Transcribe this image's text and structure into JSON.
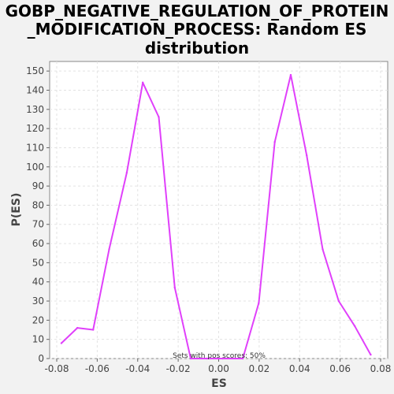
{
  "chart_data": {
    "type": "line",
    "title_lines": [
      "GOBP_NEGATIVE_REGULATION_OF_PROTEIN",
      "_MODIFICATION_PROCESS: Random ES",
      "distribution"
    ],
    "xlabel": "ES",
    "ylabel": "P(ES)",
    "annotation": "Sets with pos scores: 50%",
    "xlim": [
      -0.0835,
      0.0835
    ],
    "ylim": [
      0,
      155
    ],
    "xticks": [
      -0.08,
      -0.06,
      -0.04,
      -0.02,
      0.0,
      0.02,
      0.04,
      0.06,
      0.08
    ],
    "xtick_labels": [
      "-0.08",
      "-0.06",
      "-0.04",
      "-0.02",
      "0.00",
      "0.02",
      "0.04",
      "0.06",
      "0.08"
    ],
    "yticks": [
      0,
      10,
      20,
      30,
      40,
      50,
      60,
      70,
      80,
      90,
      100,
      110,
      120,
      130,
      140,
      150
    ],
    "ytick_labels": [
      "0",
      "10",
      "20",
      "30",
      "40",
      "50",
      "60",
      "70",
      "80",
      "90",
      "100",
      "110",
      "120",
      "130",
      "140",
      "150"
    ],
    "grid": true,
    "line_color": "#e040fb",
    "series": [
      {
        "x": [
          -0.0777,
          -0.0698,
          -0.062,
          -0.0541,
          -0.0454,
          -0.0375,
          -0.0296,
          -0.0217,
          -0.0138,
          -0.0059,
          0.002,
          0.0119,
          0.0198,
          0.0277,
          0.0356,
          0.0435,
          0.0514,
          0.0593,
          0.0672,
          0.0751
        ],
        "y": [
          8,
          16,
          15,
          57,
          97,
          144,
          126,
          37,
          0,
          0,
          0,
          0,
          29,
          113,
          148,
          106,
          57,
          30,
          17,
          2
        ]
      }
    ]
  }
}
